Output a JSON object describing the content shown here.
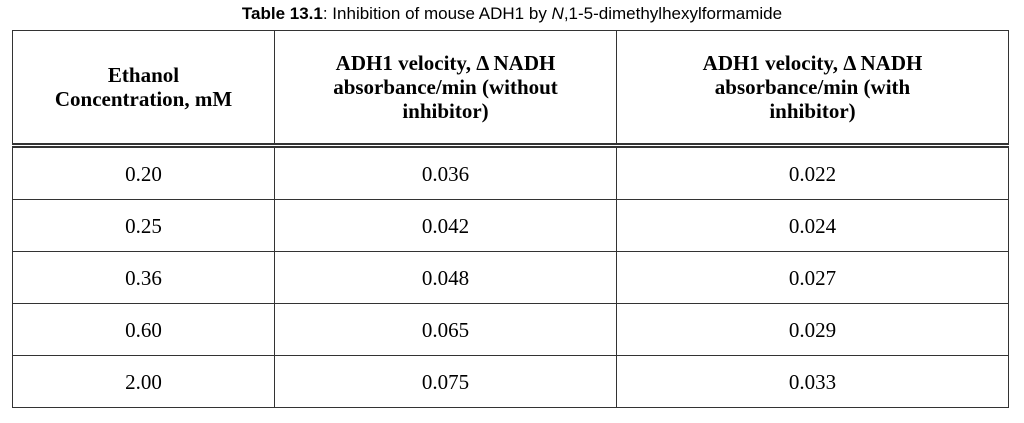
{
  "caption": {
    "label": "Table 13.1",
    "text_before_italic": ": Inhibition of mouse ADH1 by ",
    "italic": "N",
    "text_after_italic": ",1-5-dimethylhexylformamide"
  },
  "table": {
    "headers": [
      {
        "line1": "Ethanol",
        "line2": "Concentration, mM"
      },
      {
        "line1": "ADH1 velocity, Δ NADH",
        "line2": "absorbance/min (without",
        "line3": "inhibitor)"
      },
      {
        "line1": "ADH1 velocity, Δ NADH",
        "line2": "absorbance/min (with",
        "line3": "inhibitor)"
      }
    ],
    "rows": [
      [
        "0.20",
        "0.036",
        "0.022"
      ],
      [
        "0.25",
        "0.042",
        "0.024"
      ],
      [
        "0.36",
        "0.048",
        "0.027"
      ],
      [
        "0.60",
        "0.065",
        "0.029"
      ],
      [
        "2.00",
        "0.075",
        "0.033"
      ]
    ]
  }
}
